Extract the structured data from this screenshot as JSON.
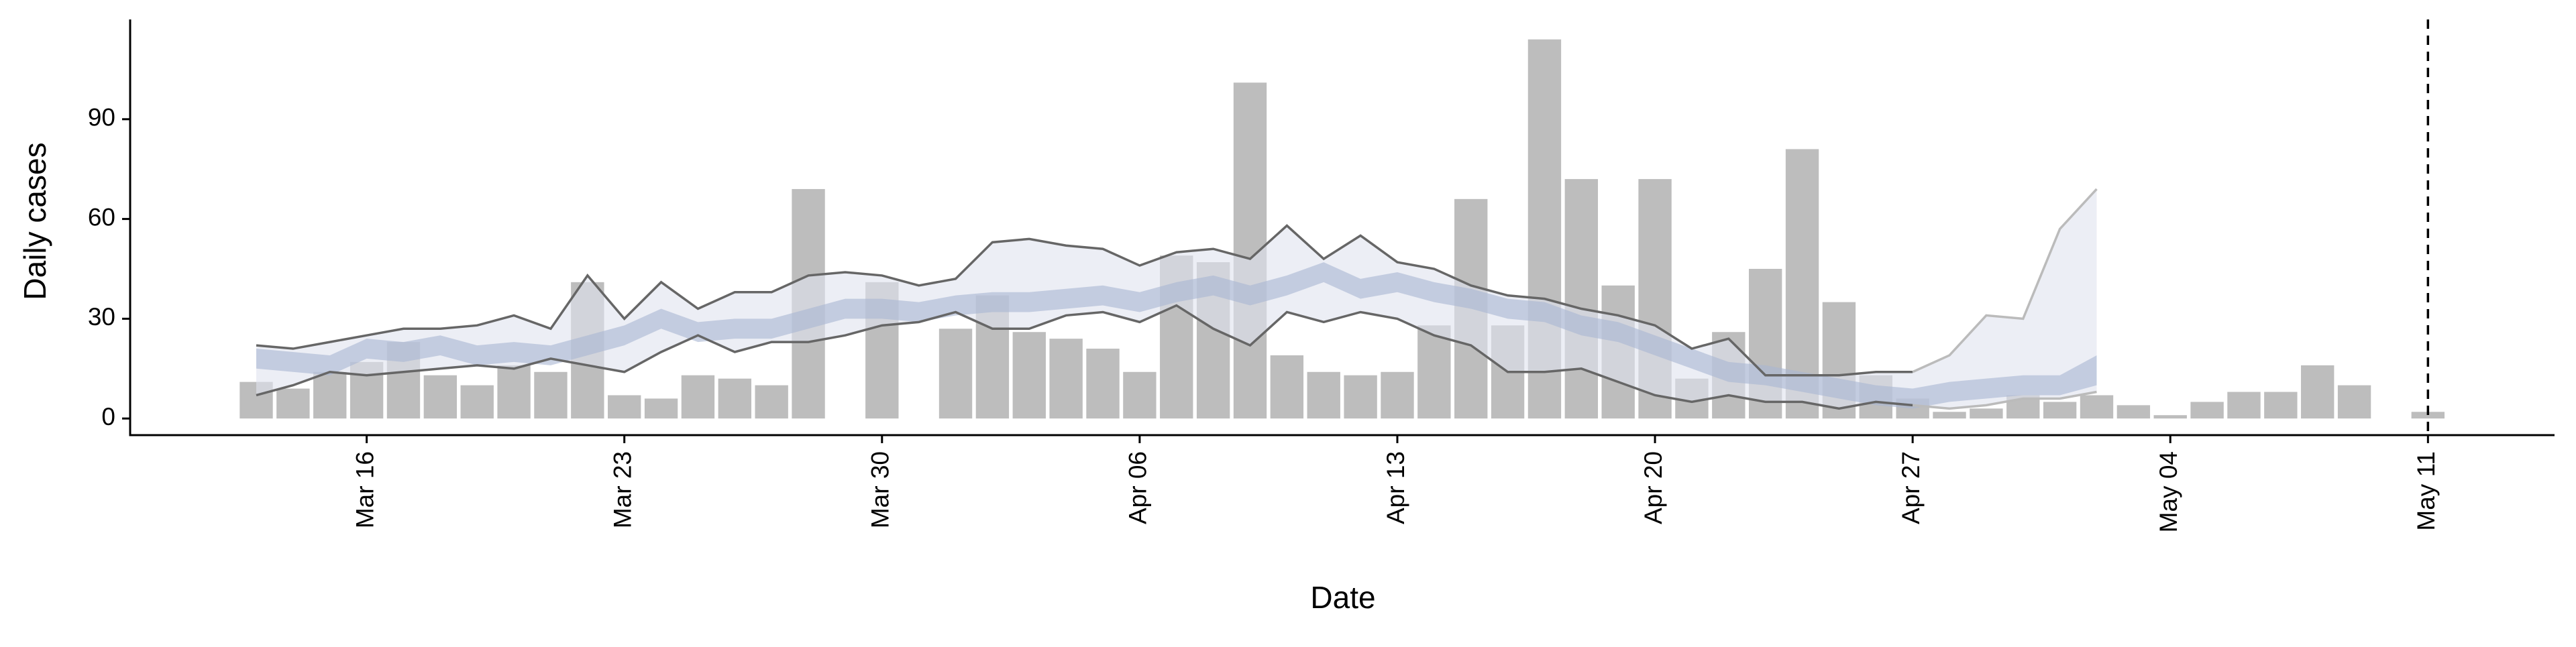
{
  "chart_data": {
    "type": "bar",
    "x_label": "Date",
    "y_label": "Daily cases",
    "x": [
      "Mar 13",
      "Mar 14",
      "Mar 15",
      "Mar 16",
      "Mar 17",
      "Mar 18",
      "Mar 19",
      "Mar 20",
      "Mar 21",
      "Mar 22",
      "Mar 23",
      "Mar 24",
      "Mar 25",
      "Mar 26",
      "Mar 27",
      "Mar 28",
      "Mar 29",
      "Mar 30",
      "Mar 31",
      "Apr 01",
      "Apr 02",
      "Apr 03",
      "Apr 04",
      "Apr 05",
      "Apr 06",
      "Apr 07",
      "Apr 08",
      "Apr 09",
      "Apr 10",
      "Apr 11",
      "Apr 12",
      "Apr 13",
      "Apr 14",
      "Apr 15",
      "Apr 16",
      "Apr 17",
      "Apr 18",
      "Apr 19",
      "Apr 20",
      "Apr 21",
      "Apr 22",
      "Apr 23",
      "Apr 24",
      "Apr 25",
      "Apr 26",
      "Apr 27",
      "Apr 28",
      "Apr 29",
      "Apr 30",
      "May 01",
      "May 02",
      "May 03",
      "May 04",
      "May 05",
      "May 06",
      "May 07",
      "May 08",
      "May 09",
      "May 10",
      "May 11"
    ],
    "xticks": [
      "Mar 16",
      "Mar 23",
      "Mar 30",
      "Apr 06",
      "Apr 13",
      "Apr 20",
      "Apr 27",
      "May 04",
      "May 11"
    ],
    "ylim": [
      -5,
      120
    ],
    "yticks": [
      0,
      30,
      60,
      90
    ],
    "grid": false,
    "color": "#bdbdbd",
    "values": [
      11,
      9,
      14,
      17,
      23,
      13,
      10,
      16,
      14,
      41,
      7,
      6,
      13,
      12,
      10,
      69,
      0,
      41,
      0,
      27,
      37,
      26,
      24,
      21,
      14,
      49,
      47,
      101,
      19,
      14,
      13,
      14,
      28,
      66,
      28,
      114,
      72,
      40,
      72,
      12,
      26,
      45,
      81,
      35,
      13,
      6,
      2,
      3,
      7,
      5,
      7,
      4,
      1,
      5,
      8,
      8,
      16,
      10,
      0,
      2
    ],
    "bands": [
      {
        "color": "#dfe2ee",
        "lo": [
          7,
          10,
          14,
          13,
          14,
          15,
          16,
          15,
          18,
          16,
          14,
          20,
          25,
          20,
          23,
          23,
          25,
          28,
          29,
          32,
          27,
          27,
          31,
          32,
          29,
          34,
          27,
          22,
          32,
          29,
          32,
          30,
          25,
          22,
          14,
          14,
          15,
          11,
          7,
          5,
          7,
          5,
          5,
          3,
          5,
          4,
          3,
          4,
          6,
          6,
          8,
          null,
          null,
          null,
          null,
          null,
          null,
          null,
          null,
          null
        ],
        "hi": [
          22,
          21,
          23,
          25,
          27,
          27,
          28,
          31,
          27,
          43,
          30,
          41,
          33,
          38,
          38,
          43,
          44,
          43,
          40,
          42,
          53,
          54,
          52,
          51,
          46,
          50,
          51,
          48,
          58,
          48,
          55,
          47,
          45,
          40,
          37,
          36,
          33,
          31,
          28,
          21,
          24,
          13,
          13,
          13,
          14,
          14,
          19,
          31,
          30,
          57,
          69,
          null,
          null,
          null,
          null,
          null,
          null,
          null,
          null,
          null
        ]
      },
      {
        "color": "#a9b5d2",
        "lo": [
          15,
          14,
          13,
          18,
          17,
          19,
          16,
          17,
          16,
          19,
          22,
          27,
          23,
          24,
          24,
          27,
          30,
          30,
          29,
          31,
          32,
          32,
          33,
          34,
          32,
          35,
          37,
          34,
          37,
          41,
          36,
          38,
          35,
          33,
          30,
          29,
          25,
          23,
          19,
          15,
          11,
          10,
          8,
          6,
          4,
          3,
          5,
          6,
          7,
          7,
          10,
          null,
          null,
          null,
          null,
          null,
          null,
          null,
          null,
          null
        ],
        "hi": [
          21,
          20,
          19,
          24,
          23,
          25,
          22,
          23,
          22,
          25,
          28,
          33,
          29,
          30,
          30,
          33,
          36,
          36,
          35,
          37,
          38,
          38,
          39,
          40,
          38,
          41,
          43,
          40,
          43,
          47,
          42,
          44,
          41,
          39,
          36,
          35,
          31,
          29,
          25,
          21,
          17,
          16,
          14,
          12,
          10,
          9,
          11,
          12,
          13,
          13,
          19,
          null,
          null,
          null,
          null,
          null,
          null,
          null,
          null,
          null
        ]
      }
    ],
    "lines": [
      {
        "color": "#666666",
        "values": [
          22,
          21,
          23,
          25,
          27,
          27,
          28,
          31,
          27,
          43,
          30,
          41,
          33,
          38,
          38,
          43,
          44,
          43,
          40,
          42,
          53,
          54,
          52,
          51,
          46,
          50,
          51,
          48,
          58,
          48,
          55,
          47,
          45,
          40,
          37,
          36,
          33,
          31,
          28,
          21,
          24,
          13,
          13,
          13,
          14,
          14,
          null,
          null,
          null,
          null,
          null,
          null,
          null,
          null,
          null,
          null,
          null,
          null,
          null,
          null
        ]
      },
      {
        "color": "#666666",
        "values": [
          7,
          10,
          14,
          13,
          14,
          15,
          16,
          15,
          18,
          16,
          14,
          20,
          25,
          20,
          23,
          23,
          25,
          28,
          29,
          32,
          27,
          27,
          31,
          32,
          29,
          34,
          27,
          22,
          32,
          29,
          32,
          30,
          25,
          22,
          14,
          14,
          15,
          11,
          7,
          5,
          7,
          5,
          5,
          3,
          5,
          4,
          null,
          null,
          null,
          null,
          null,
          null,
          null,
          null,
          null,
          null,
          null,
          null,
          null,
          null
        ]
      },
      {
        "color": "#bbbbbb",
        "values": [
          null,
          null,
          null,
          null,
          null,
          null,
          null,
          null,
          null,
          null,
          null,
          null,
          null,
          null,
          null,
          null,
          null,
          null,
          null,
          null,
          null,
          null,
          null,
          null,
          null,
          null,
          null,
          null,
          null,
          null,
          null,
          null,
          null,
          null,
          null,
          null,
          null,
          null,
          null,
          null,
          null,
          null,
          null,
          null,
          null,
          14,
          19,
          31,
          30,
          57,
          69,
          null,
          null,
          null,
          null,
          null,
          null,
          null,
          null,
          null
        ]
      },
      {
        "color": "#bbbbbb",
        "values": [
          null,
          null,
          null,
          null,
          null,
          null,
          null,
          null,
          null,
          null,
          null,
          null,
          null,
          null,
          null,
          null,
          null,
          null,
          null,
          null,
          null,
          null,
          null,
          null,
          null,
          null,
          null,
          null,
          null,
          null,
          null,
          null,
          null,
          null,
          null,
          null,
          null,
          null,
          null,
          null,
          null,
          null,
          null,
          null,
          null,
          4,
          3,
          4,
          6,
          6,
          8,
          null,
          null,
          null,
          null,
          null,
          null,
          null,
          null,
          null
        ]
      }
    ],
    "vline": {
      "x": "May 11",
      "color": "#000000",
      "dashed": true
    }
  }
}
